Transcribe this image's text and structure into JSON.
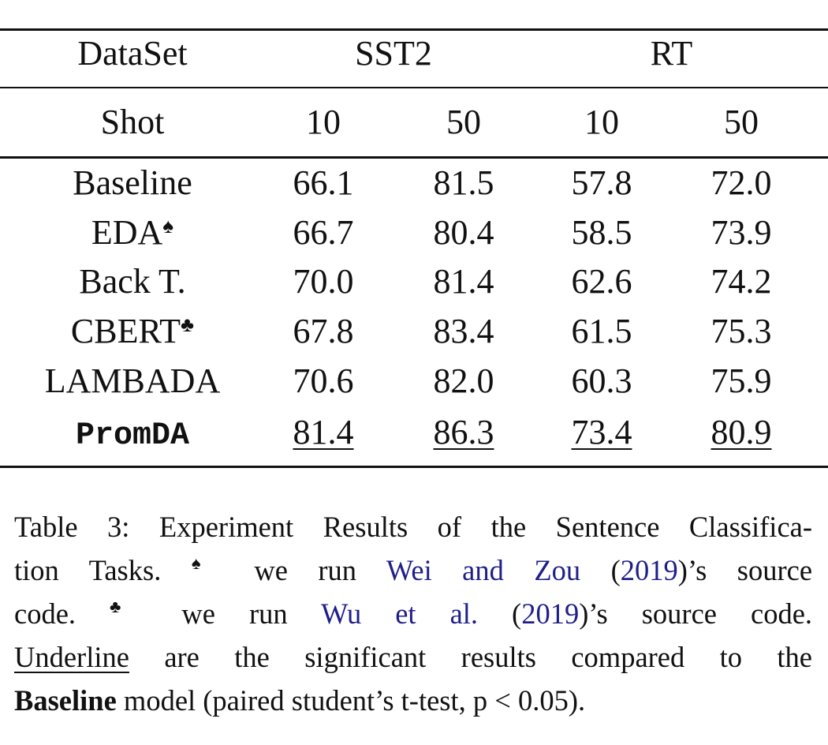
{
  "table": {
    "header": {
      "dataset": "DataSet",
      "groups": [
        "SST2",
        "RT"
      ],
      "shot": "Shot",
      "shots": [
        "10",
        "50",
        "10",
        "50"
      ]
    },
    "rows": [
      {
        "label": "Baseline",
        "values": [
          "66.1",
          "81.5",
          "57.8",
          "72.0"
        ]
      },
      {
        "label": "EDA",
        "mark": "♠",
        "values": [
          "66.7",
          "80.4",
          "58.5",
          "73.9"
        ]
      },
      {
        "label": "Back T.",
        "values": [
          "70.0",
          "81.4",
          "62.6",
          "74.2"
        ]
      },
      {
        "label": "CBERT",
        "mark": "♣",
        "values": [
          "67.8",
          "83.4",
          "61.5",
          "75.3"
        ]
      },
      {
        "label": "LAMBADA",
        "values": [
          "70.6",
          "82.0",
          "60.3",
          "75.9"
        ]
      },
      {
        "label": "PromDA",
        "values": [
          "81.4",
          "86.3",
          "73.4",
          "80.9"
        ]
      }
    ]
  },
  "caption": {
    "lines": [
      [
        "Table 3: Experiment Results of the Sentence Classifica-"
      ],
      [
        "tion Tasks. ",
        "♠",
        " we run ",
        "Wei and Zou",
        " (",
        "2019",
        ")’s source"
      ],
      [
        "code. ",
        "♣",
        " we run ",
        "Wu et al.",
        " (",
        "2019",
        ")’s source code."
      ],
      [
        "Underline",
        " are the significant results compared to the"
      ],
      [
        "Baseline",
        " model (paired student’s t-test, p < 0.05)."
      ]
    ]
  }
}
